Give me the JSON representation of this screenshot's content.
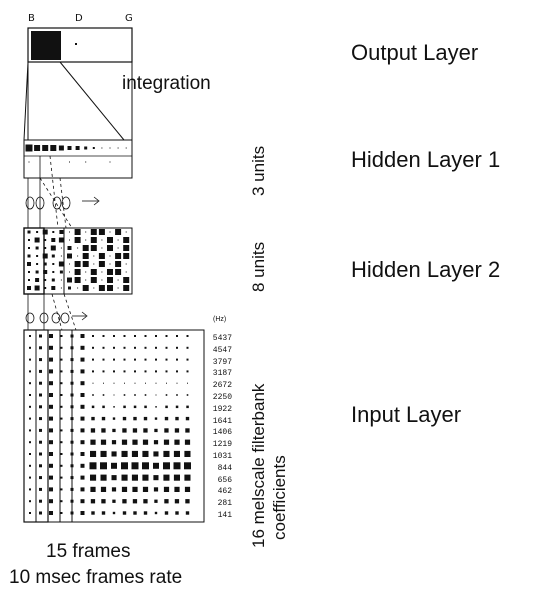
{
  "output": {
    "col_labels": [
      "B",
      "D",
      "G"
    ],
    "integration_label": "integration"
  },
  "layers": {
    "output": "Output Layer",
    "hidden1": "Hidden Layer 1",
    "hidden2": "Hidden Layer 2",
    "input": "Input Layer"
  },
  "units": {
    "hidden1": "3 units",
    "hidden2": "8 units",
    "input_line1": "16 melscale filterbank",
    "input_line2": "coefficients"
  },
  "hz_label": "(Hz)",
  "frequencies": [
    "5437",
    "4547",
    "3797",
    "3187",
    "2672",
    "2250",
    "1922",
    "1641",
    "1406",
    "1219",
    "1031",
    "844",
    "656",
    "462",
    "281",
    "141"
  ],
  "caption": {
    "line1": "15 frames",
    "line2": "10 msec frames rate"
  }
}
